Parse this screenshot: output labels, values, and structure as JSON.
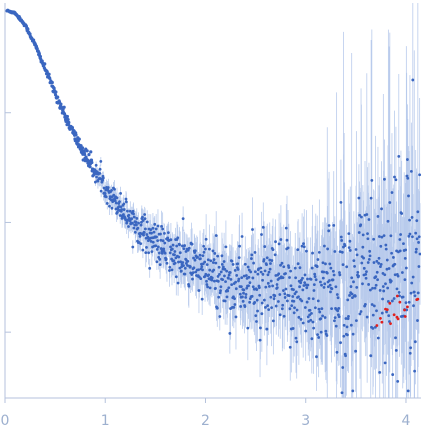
{
  "chart_data": {
    "type": "scatter",
    "title": "",
    "xlabel": "",
    "ylabel": "",
    "y_scale": "log",
    "xlim": [
      0,
      4.15
    ],
    "ylim": [
      -3.55,
      0.05
    ],
    "x_ticks": [
      0,
      1,
      2,
      3,
      4
    ],
    "x_tick_labels": [
      "0",
      "1",
      "2",
      "3",
      "4"
    ],
    "y_ticks": [
      -0.95,
      -1.95,
      -2.95
    ],
    "grid": false,
    "legend": "none",
    "error_bars": true,
    "colors": {
      "points": "#3a66c0",
      "outliers": "#e0201e",
      "error_bars": "#b9cbec",
      "axis": "#b5c2dc"
    },
    "series": [
      {
        "points": [
          [
            0.02,
            -0.02
          ],
          [
            0.1,
            -0.04
          ],
          [
            0.2,
            -0.15
          ],
          [
            0.3,
            -0.33
          ],
          [
            0.4,
            -0.55
          ],
          [
            0.5,
            -0.77
          ],
          [
            0.6,
            -0.98
          ],
          [
            0.7,
            -1.17
          ],
          [
            0.8,
            -1.34
          ],
          [
            0.9,
            -1.49
          ],
          [
            1.0,
            -1.63
          ],
          [
            1.1,
            -1.75
          ],
          [
            1.2,
            -1.86
          ],
          [
            1.3,
            -1.96
          ],
          [
            1.4,
            -2.05
          ],
          [
            1.5,
            -2.13
          ],
          [
            1.6,
            -2.2
          ],
          [
            1.7,
            -2.26
          ],
          [
            1.8,
            -2.31
          ],
          [
            1.9,
            -2.36
          ],
          [
            2.0,
            -2.4
          ],
          [
            2.1,
            -2.44
          ],
          [
            2.2,
            -2.47
          ],
          [
            2.3,
            -2.5
          ],
          [
            2.4,
            -2.52
          ],
          [
            2.5,
            -2.54
          ],
          [
            2.6,
            -2.56
          ],
          [
            2.7,
            -2.57
          ],
          [
            2.8,
            -2.58
          ],
          [
            2.9,
            -2.58
          ],
          [
            3.0,
            -2.58
          ],
          [
            3.1,
            -2.57
          ],
          [
            3.2,
            -2.56
          ],
          [
            3.3,
            -2.54
          ],
          [
            3.4,
            -2.51
          ],
          [
            3.5,
            -2.48
          ],
          [
            3.6,
            -2.45
          ],
          [
            3.7,
            -2.42
          ],
          [
            3.8,
            -2.39
          ],
          [
            3.9,
            -2.36
          ],
          [
            4.0,
            -2.33
          ],
          [
            4.1,
            -2.3
          ]
        ]
      }
    ]
  }
}
